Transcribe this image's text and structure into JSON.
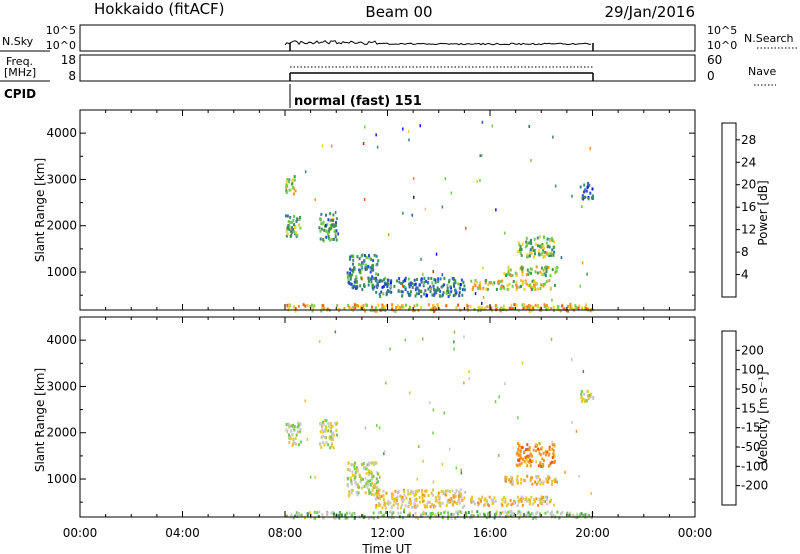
{
  "header": {
    "station": "Hokkaido (fitACF)",
    "beam": "Beam 00",
    "date": "29/Jan/2016"
  },
  "sky_panel": {
    "left_label": "N.Sky",
    "left_ticks": [
      "10^5",
      "10^0"
    ],
    "right_ticks": [
      "10^5",
      "10^0"
    ],
    "right_label": "N.Search"
  },
  "freq_panel": {
    "left_label_1": "Freq.",
    "left_label_2": "[MHz]",
    "left_ticks": [
      "18",
      "8"
    ],
    "right_ticks": [
      "60",
      "0"
    ],
    "right_label": "Nave"
  },
  "cpid": {
    "label": "CPID",
    "program": "normal (fast) 151"
  },
  "colors": {
    "power_scale": [
      "#0a14e6",
      "#2850c8",
      "#3c7d8c",
      "#3c9650",
      "#78c850",
      "#e6d232",
      "#f09628",
      "#f05a14",
      "#e61414"
    ],
    "velocity_scale": [
      "#e61414",
      "#f05a14",
      "#f09628",
      "#e6c832",
      "#c8c8c8",
      "#78c850",
      "#3c9650",
      "#3c7d8c",
      "#1e46b4"
    ]
  },
  "chart_data": [
    {
      "type": "heatmap",
      "panel": "power",
      "xlabel": "",
      "ylabel": "Slant Range [km]",
      "x_unit": "hours UT",
      "xlim": [
        0,
        24
      ],
      "ylim": [
        180,
        4500
      ],
      "yticks": [
        1000,
        2000,
        3000,
        4000
      ],
      "colorbar_label": "Power [dB]",
      "colorbar_ticks": [
        "4",
        "8",
        "12",
        "16",
        "20",
        "24",
        "28"
      ],
      "colorbar_range": [
        0,
        31
      ],
      "observation_window": [
        8,
        20
      ],
      "regions": [
        {
          "t0": 8.0,
          "t1": 20.0,
          "r0": 180,
          "r1": 330,
          "level": 20
        },
        {
          "t0": 8.0,
          "t1": 8.6,
          "r0": 1750,
          "r1": 2250,
          "level": 14
        },
        {
          "t0": 8.0,
          "t1": 8.4,
          "r0": 2700,
          "r1": 3100,
          "level": 18
        },
        {
          "t0": 9.3,
          "t1": 10.0,
          "r0": 1700,
          "r1": 2300,
          "level": 12
        },
        {
          "t0": 10.4,
          "t1": 11.6,
          "r0": 650,
          "r1": 1400,
          "level": 10
        },
        {
          "t0": 11.5,
          "t1": 15.0,
          "r0": 500,
          "r1": 900,
          "level": 9
        },
        {
          "t0": 15.2,
          "t1": 18.5,
          "r0": 650,
          "r1": 850,
          "level": 18
        },
        {
          "t0": 16.5,
          "t1": 18.6,
          "r0": 950,
          "r1": 1150,
          "level": 16
        },
        {
          "t0": 17.0,
          "t1": 18.5,
          "r0": 1350,
          "r1": 1800,
          "level": 15
        },
        {
          "t0": 19.5,
          "t1": 20.0,
          "r0": 2600,
          "r1": 2950,
          "level": 8
        }
      ]
    },
    {
      "type": "heatmap",
      "panel": "velocity",
      "xlabel": "Time UT",
      "ylabel": "Slant Range [km]",
      "x_unit": "hours UT",
      "xlim": [
        0,
        24
      ],
      "ylim": [
        180,
        4500
      ],
      "yticks": [
        1000,
        2000,
        3000,
        4000
      ],
      "xticks": [
        "00:00",
        "04:00",
        "08:00",
        "12:00",
        "16:00",
        "20:00",
        "00:00"
      ],
      "colorbar_label": "Velocity [m s⁻¹]",
      "colorbar_ticks": [
        "-200",
        "-100",
        "-50",
        "-15",
        "15",
        "50",
        "100",
        "200"
      ],
      "observation_window": [
        8,
        20
      ],
      "regions": [
        {
          "t0": 8.0,
          "t1": 20.0,
          "r0": 180,
          "r1": 330,
          "level": 20
        },
        {
          "t0": 8.0,
          "t1": 8.6,
          "r0": 1750,
          "r1": 2250,
          "level": 0
        },
        {
          "t0": 9.3,
          "t1": 10.0,
          "r0": 1700,
          "r1": 2300,
          "level": 0
        },
        {
          "t0": 10.4,
          "t1": 11.6,
          "r0": 650,
          "r1": 1400,
          "level": 0
        },
        {
          "t0": 11.5,
          "t1": 15.0,
          "r0": 400,
          "r1": 800,
          "level": -30
        },
        {
          "t0": 15.2,
          "t1": 18.5,
          "r0": 450,
          "r1": 650,
          "level": -40
        },
        {
          "t0": 16.5,
          "t1": 18.6,
          "r0": 900,
          "r1": 1100,
          "level": -40
        },
        {
          "t0": 17.0,
          "t1": 18.5,
          "r0": 1300,
          "r1": 1800,
          "level": -80
        },
        {
          "t0": 19.5,
          "t1": 20.0,
          "r0": 2700,
          "r1": 2950,
          "level": -10
        }
      ]
    }
  ]
}
